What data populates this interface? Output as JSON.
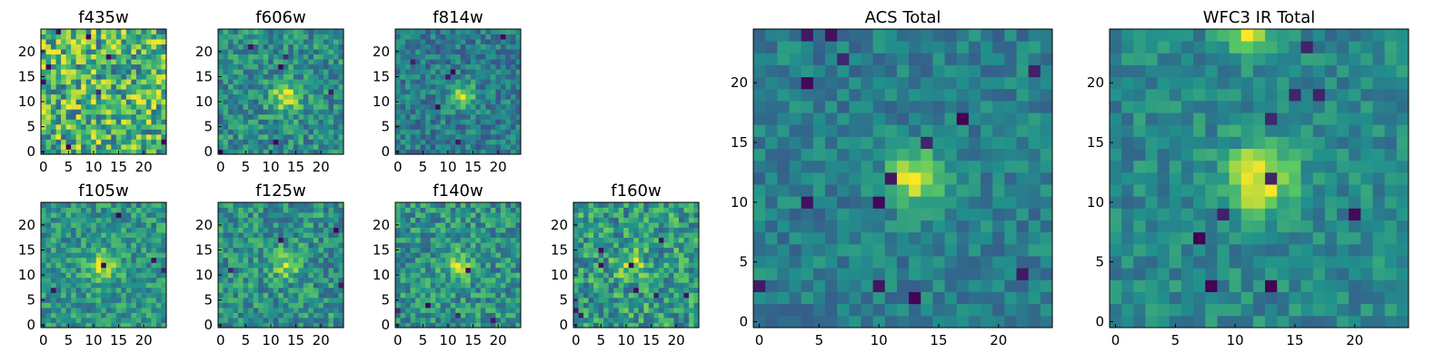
{
  "colormap": [
    "#440154",
    "#3b528b",
    "#21918c",
    "#5ec962",
    "#fde725"
  ],
  "chart_data": [
    {
      "type": "heatmap",
      "title": "f435w",
      "grid_size": 25,
      "xlim": [
        0,
        24
      ],
      "ylim": [
        0,
        24
      ],
      "xticks": [
        0,
        5,
        10,
        15,
        20
      ],
      "yticks": [
        0,
        5,
        10,
        15,
        20
      ],
      "seed": 11,
      "noise": 1.0,
      "blobs": [],
      "holes": 8
    },
    {
      "type": "heatmap",
      "title": "f606w",
      "grid_size": 25,
      "xlim": [
        0,
        24
      ],
      "ylim": [
        0,
        24
      ],
      "xticks": [
        0,
        5,
        10,
        15,
        20
      ],
      "yticks": [
        0,
        5,
        10,
        15,
        20
      ],
      "seed": 23,
      "noise": 0.8,
      "blobs": [
        {
          "x": 13,
          "y": 11,
          "sigma": 2.0,
          "amp": 0.9
        }
      ],
      "holes": 6
    },
    {
      "type": "heatmap",
      "title": "f814w",
      "grid_size": 25,
      "xlim": [
        0,
        24
      ],
      "ylim": [
        0,
        24
      ],
      "xticks": [
        0,
        5,
        10,
        15,
        20
      ],
      "yticks": [
        0,
        5,
        10,
        15,
        20
      ],
      "seed": 37,
      "noise": 0.8,
      "blobs": [
        {
          "x": 13,
          "y": 11,
          "sigma": 1.8,
          "amp": 1.0
        }
      ],
      "holes": 6
    },
    {
      "type": "heatmap",
      "title": "f105w",
      "grid_size": 25,
      "xlim": [
        0,
        24
      ],
      "ylim": [
        0,
        24
      ],
      "xticks": [
        0,
        5,
        10,
        15,
        20
      ],
      "yticks": [
        0,
        5,
        10,
        15,
        20
      ],
      "seed": 41,
      "noise": 0.7,
      "blobs": [
        {
          "x": 12,
          "y": 12,
          "sigma": 2.2,
          "amp": 0.7
        }
      ],
      "holes": 5
    },
    {
      "type": "heatmap",
      "title": "f125w",
      "grid_size": 25,
      "xlim": [
        0,
        24
      ],
      "ylim": [
        0,
        24
      ],
      "xticks": [
        0,
        5,
        10,
        15,
        20
      ],
      "yticks": [
        0,
        5,
        10,
        15,
        20
      ],
      "seed": 53,
      "noise": 0.8,
      "blobs": [
        {
          "x": 13,
          "y": 12,
          "sigma": 2.0,
          "amp": 0.6
        }
      ],
      "holes": 4
    },
    {
      "type": "heatmap",
      "title": "f140w",
      "grid_size": 25,
      "xlim": [
        0,
        24
      ],
      "ylim": [
        0,
        24
      ],
      "xticks": [
        0,
        5,
        10,
        15,
        20
      ],
      "yticks": [
        0,
        5,
        10,
        15,
        20
      ],
      "seed": 67,
      "noise": 0.8,
      "blobs": [
        {
          "x": 12,
          "y": 12,
          "sigma": 2.0,
          "amp": 0.6
        }
      ],
      "holes": 5
    },
    {
      "type": "heatmap",
      "title": "f160w",
      "grid_size": 25,
      "xlim": [
        0,
        24
      ],
      "ylim": [
        0,
        24
      ],
      "xticks": [
        0,
        5,
        10,
        15,
        20
      ],
      "yticks": [
        0,
        5,
        10,
        15,
        20
      ],
      "seed": 79,
      "noise": 0.9,
      "blobs": [
        {
          "x": 11,
          "y": 12,
          "sigma": 2.0,
          "amp": 0.5
        }
      ],
      "holes": 9
    },
    {
      "type": "heatmap",
      "title": "ACS Total",
      "grid_size": 25,
      "xlim": [
        0,
        24
      ],
      "ylim": [
        0,
        24
      ],
      "xticks": [
        0,
        5,
        10,
        15,
        20
      ],
      "yticks": [
        0,
        5,
        10,
        15,
        20
      ],
      "seed": 97,
      "noise": 0.6,
      "blobs": [
        {
          "x": 13,
          "y": 12,
          "sigma": 1.6,
          "amp": 1.2
        }
      ],
      "holes": 14
    },
    {
      "type": "heatmap",
      "title": "WFC3 IR Total",
      "grid_size": 25,
      "xlim": [
        0,
        24
      ],
      "ylim": [
        0,
        24
      ],
      "xticks": [
        0,
        5,
        10,
        15,
        20
      ],
      "yticks": [
        0,
        5,
        10,
        15,
        20
      ],
      "seed": 113,
      "noise": 0.55,
      "blobs": [
        {
          "x": 12,
          "y": 12,
          "sigma": 2.0,
          "amp": 1.1
        },
        {
          "x": 11,
          "y": 24,
          "sigma": 1.2,
          "amp": 0.9
        }
      ],
      "holes": 10
    }
  ]
}
